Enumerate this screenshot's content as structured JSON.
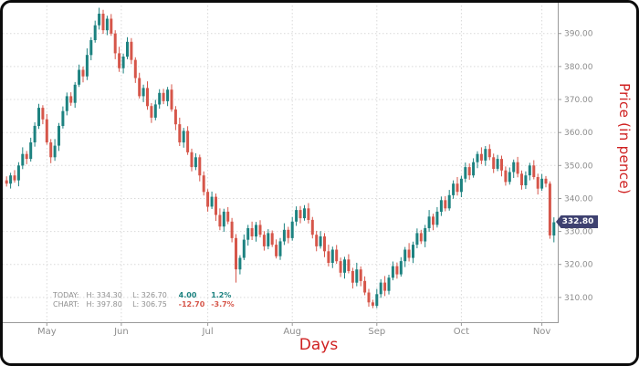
{
  "badge": {
    "label": "332.80"
  },
  "legend": {
    "today": {
      "label": "TODAY:",
      "high": "H: 334.30",
      "low": "L: 326.70",
      "change": "4.00",
      "pct": "1.2%"
    },
    "chart": {
      "label": "CHART:",
      "high": "H: 397.80",
      "low": "L: 306.75",
      "change": "-12.70",
      "pct": "-3.7%"
    }
  },
  "colors": {
    "up": "#1d8280",
    "down": "#d6564a",
    "grid": "#d9d9d9",
    "axis": "#9a9a9a",
    "tick_text": "#8c8c8c",
    "badge_bg": "#3e4170",
    "axis_title": "#cf2121"
  },
  "chart_data": {
    "type": "candlestick",
    "title": "",
    "xlabel": "Days",
    "ylabel": "Price (in pence)",
    "ylim": [
      302.5,
      398.5
    ],
    "grid": true,
    "y_ticks": [
      310,
      320,
      330,
      340,
      350,
      360,
      370,
      380,
      390
    ],
    "y_tick_labels": [
      "310.00",
      "320.00",
      "330.00",
      "340.00",
      "350.00",
      "360.00",
      "370.00",
      "380.00",
      "390.00"
    ],
    "x_ticks": [
      {
        "label": "May",
        "day": 10
      },
      {
        "label": "Jun",
        "day": 28.5
      },
      {
        "label": "Jul",
        "day": 50
      },
      {
        "label": "Aug",
        "day": 71
      },
      {
        "label": "Sep",
        "day": 92
      },
      {
        "label": "Oct",
        "day": 113
      },
      {
        "label": "Nov",
        "day": 133
      }
    ],
    "last_price": 332.8,
    "today": {
      "high": 334.3,
      "low": 326.7,
      "change": 4.0,
      "change_pct": "1.2%"
    },
    "period": {
      "high": 397.8,
      "low": 306.75,
      "change": -12.7,
      "change_pct": "-3.7%"
    },
    "candles": [
      [
        345.5,
        346.7,
        343.6,
        344.5
      ],
      [
        344.5,
        347.8,
        343.0,
        347.0
      ],
      [
        347.0,
        348.6,
        344.8,
        345.5
      ],
      [
        345.5,
        351.0,
        343.7,
        350.0
      ],
      [
        350.0,
        355.5,
        348.9,
        353.5
      ],
      [
        353.5,
        354.4,
        350.4,
        352.0
      ],
      [
        352.0,
        358.4,
        351.2,
        357.0
      ],
      [
        357.0,
        363.1,
        355.7,
        362.0
      ],
      [
        362.0,
        368.7,
        361.1,
        367.5
      ],
      [
        367.5,
        368.3,
        362.5,
        364.0
      ],
      [
        364.0,
        365.6,
        356.3,
        357.0
      ],
      [
        357.0,
        358.0,
        350.7,
        352.5
      ],
      [
        352.5,
        358.0,
        351.4,
        356.0
      ],
      [
        356.0,
        362.9,
        354.4,
        362.0
      ],
      [
        362.0,
        367.9,
        361.2,
        366.5
      ],
      [
        366.5,
        372.1,
        365.2,
        371.0
      ],
      [
        371.0,
        372.2,
        368.1,
        369.0
      ],
      [
        369.0,
        375.3,
        367.5,
        374.5
      ],
      [
        374.5,
        380.6,
        373.8,
        379.0
      ],
      [
        379.0,
        380.0,
        375.2,
        377.0
      ],
      [
        377.0,
        385.5,
        375.9,
        383.5
      ],
      [
        383.5,
        388.9,
        381.9,
        388.0
      ],
      [
        388.0,
        393.9,
        387.2,
        392.5
      ],
      [
        392.5,
        397.8,
        391.2,
        396.0
      ],
      [
        396.0,
        397.2,
        389.9,
        391.0
      ],
      [
        391.0,
        395.4,
        389.5,
        394.5
      ],
      [
        394.5,
        395.9,
        389.3,
        390.0
      ],
      [
        390.0,
        391.0,
        382.2,
        384.0
      ],
      [
        384.0,
        386.0,
        378.4,
        379.5
      ],
      [
        379.5,
        383.9,
        377.9,
        383.0
      ],
      [
        383.0,
        388.9,
        382.2,
        387.5
      ],
      [
        387.5,
        388.6,
        380.7,
        382.0
      ],
      [
        382.0,
        382.8,
        375.0,
        376.5
      ],
      [
        376.5,
        378.1,
        370.3,
        371.0
      ],
      [
        371.0,
        374.5,
        369.2,
        373.5
      ],
      [
        373.5,
        375.5,
        366.9,
        368.0
      ],
      [
        368.0,
        368.9,
        362.9,
        364.5
      ],
      [
        364.5,
        369.9,
        363.7,
        368.5
      ],
      [
        368.5,
        373.1,
        367.2,
        372.0
      ],
      [
        372.0,
        373.2,
        368.6,
        369.5
      ],
      [
        369.5,
        373.8,
        368.0,
        373.0
      ],
      [
        373.0,
        374.6,
        366.3,
        367.0
      ],
      [
        367.0,
        368.0,
        360.7,
        362.5
      ],
      [
        362.5,
        364.5,
        355.9,
        357.0
      ],
      [
        357.0,
        361.4,
        355.4,
        360.5
      ],
      [
        360.5,
        361.9,
        353.2,
        354.0
      ],
      [
        354.0,
        355.1,
        348.2,
        349.5
      ],
      [
        349.5,
        353.7,
        348.6,
        352.5
      ],
      [
        352.5,
        353.3,
        345.2,
        347.0
      ],
      [
        347.0,
        348.2,
        340.9,
        342.0
      ],
      [
        342.0,
        342.8,
        336.0,
        337.5
      ],
      [
        337.5,
        342.1,
        336.8,
        340.5
      ],
      [
        340.5,
        341.5,
        333.2,
        335.0
      ],
      [
        335.0,
        337.0,
        330.4,
        331.5
      ],
      [
        331.5,
        336.9,
        329.9,
        336.0
      ],
      [
        336.0,
        337.4,
        332.2,
        333.0
      ],
      [
        333.0,
        334.1,
        326.7,
        328.0
      ],
      [
        328.0,
        329.2,
        314.5,
        318.5
      ],
      [
        318.5,
        322.8,
        317.0,
        322.0
      ],
      [
        322.0,
        329.1,
        321.3,
        327.5
      ],
      [
        327.5,
        332.0,
        325.7,
        331.0
      ],
      [
        331.0,
        333.0,
        327.4,
        328.5
      ],
      [
        328.5,
        332.9,
        326.9,
        332.0
      ],
      [
        332.0,
        333.4,
        328.2,
        329.0
      ],
      [
        329.0,
        330.1,
        324.2,
        325.5
      ],
      [
        325.5,
        330.7,
        324.6,
        329.5
      ],
      [
        329.5,
        330.3,
        325.3,
        326.0
      ],
      [
        326.0,
        327.6,
        321.8,
        322.5
      ],
      [
        322.5,
        328.0,
        321.4,
        327.0
      ],
      [
        327.0,
        332.5,
        325.9,
        330.5
      ],
      [
        330.5,
        331.4,
        326.4,
        328.0
      ],
      [
        328.0,
        334.4,
        327.2,
        333.0
      ],
      [
        333.0,
        337.6,
        331.7,
        336.5
      ],
      [
        336.5,
        337.7,
        332.5,
        334.0
      ],
      [
        334.0,
        338.0,
        333.3,
        337.0
      ],
      [
        337.0,
        338.6,
        332.4,
        333.5
      ],
      [
        333.5,
        334.4,
        327.9,
        329.0
      ],
      [
        329.0,
        330.2,
        324.0,
        325.5
      ],
      [
        325.5,
        330.1,
        324.8,
        328.5
      ],
      [
        328.5,
        329.5,
        322.2,
        324.0
      ],
      [
        324.0,
        326.0,
        319.4,
        320.5
      ],
      [
        320.5,
        325.4,
        318.9,
        324.5
      ],
      [
        324.5,
        325.9,
        320.2,
        321.0
      ],
      [
        321.0,
        322.1,
        316.2,
        317.5
      ],
      [
        317.5,
        322.3,
        315.7,
        321.5
      ],
      [
        321.5,
        323.1,
        317.3,
        318.0
      ],
      [
        318.0,
        319.0,
        312.7,
        314.5
      ],
      [
        314.5,
        320.5,
        313.4,
        318.5
      ],
      [
        318.5,
        319.4,
        313.4,
        315.0
      ],
      [
        315.0,
        316.4,
        310.7,
        311.5
      ],
      [
        311.5,
        312.6,
        307.2,
        308.5
      ],
      [
        308.5,
        309.3,
        306.75,
        307.5
      ],
      [
        307.5,
        312.6,
        306.8,
        311.0
      ],
      [
        311.0,
        315.5,
        309.9,
        314.5
      ],
      [
        314.5,
        316.5,
        310.4,
        312.0
      ],
      [
        312.0,
        316.9,
        310.9,
        316.0
      ],
      [
        316.0,
        320.9,
        315.2,
        319.5
      ],
      [
        319.5,
        320.6,
        315.7,
        317.0
      ],
      [
        317.0,
        322.2,
        316.3,
        321.0
      ],
      [
        321.0,
        325.3,
        319.2,
        324.5
      ],
      [
        324.5,
        326.5,
        320.9,
        322.0
      ],
      [
        322.0,
        326.9,
        320.4,
        326.0
      ],
      [
        326.0,
        330.9,
        324.9,
        329.5
      ],
      [
        329.5,
        330.5,
        326.2,
        327.0
      ],
      [
        327.0,
        332.0,
        325.2,
        331.0
      ],
      [
        331.0,
        336.5,
        329.9,
        334.5
      ],
      [
        334.5,
        335.4,
        330.4,
        332.0
      ],
      [
        332.0,
        337.4,
        331.2,
        336.0
      ],
      [
        336.0,
        340.6,
        334.7,
        339.5
      ],
      [
        339.5,
        340.7,
        336.1,
        337.0
      ],
      [
        337.0,
        342.6,
        336.3,
        341.0
      ],
      [
        341.0,
        345.5,
        339.9,
        344.5
      ],
      [
        344.5,
        346.5,
        340.9,
        342.0
      ],
      [
        342.0,
        346.9,
        340.4,
        346.0
      ],
      [
        346.0,
        350.9,
        344.9,
        349.5
      ],
      [
        349.5,
        350.6,
        345.7,
        347.0
      ],
      [
        347.0,
        352.2,
        346.3,
        351.0
      ],
      [
        351.0,
        354.3,
        349.2,
        353.5
      ],
      [
        353.5,
        355.5,
        350.4,
        351.5
      ],
      [
        351.5,
        355.9,
        349.9,
        355.0
      ],
      [
        355.0,
        356.4,
        351.6,
        352.5
      ],
      [
        352.5,
        353.6,
        347.7,
        349.0
      ],
      [
        349.0,
        353.2,
        348.3,
        352.0
      ],
      [
        352.0,
        353.0,
        346.7,
        348.5
      ],
      [
        348.5,
        349.7,
        343.9,
        345.0
      ],
      [
        345.0,
        349.4,
        344.2,
        348.0
      ],
      [
        348.0,
        351.8,
        346.2,
        351.0
      ],
      [
        351.0,
        352.6,
        346.4,
        347.5
      ],
      [
        347.5,
        348.5,
        342.7,
        344.0
      ],
      [
        344.0,
        348.2,
        342.9,
        347.0
      ],
      [
        347.0,
        350.8,
        345.5,
        350.0
      ],
      [
        350.0,
        351.6,
        345.8,
        346.5
      ],
      [
        346.5,
        347.5,
        341.2,
        343.0
      ],
      [
        343.0,
        347.4,
        342.3,
        346.0
      ],
      [
        346.0,
        346.8,
        343.4,
        344.5
      ],
      [
        344.5,
        345.2,
        327.8,
        328.8
      ],
      [
        328.8,
        334.3,
        326.7,
        332.8
      ]
    ]
  }
}
